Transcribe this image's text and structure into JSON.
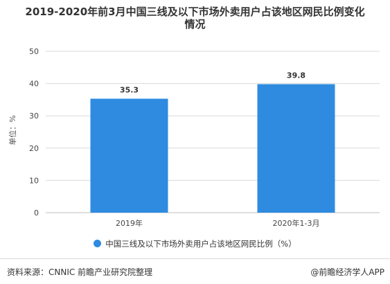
{
  "page": {
    "title_line1": "2019-2020年前3月中国三线及以下市场外卖用户占该地区网民比例变化",
    "title_line2": "情况",
    "source": "资料来源：CNNIC 前瞻产业研究院整理",
    "brand": "@前瞻经济学人APP"
  },
  "colors": {
    "bar": "#2e8be0",
    "grid": "#d9d9d9",
    "axis_text": "#444444"
  },
  "chart_data": {
    "type": "bar",
    "categories": [
      "2019年",
      "2020年1-3月"
    ],
    "values": [
      35.3,
      39.8
    ],
    "value_labels": [
      "35.3",
      "39.8"
    ],
    "series": [
      {
        "name": "中国三线及以下市场外卖用户占该地区网民比例（%）",
        "values": [
          35.3,
          39.8
        ]
      }
    ],
    "ylabel": "单位：%",
    "ylim": [
      0,
      50
    ],
    "yticks": [
      0,
      10,
      20,
      30,
      40,
      50
    ],
    "grid": true,
    "legend_position": "bottom"
  }
}
